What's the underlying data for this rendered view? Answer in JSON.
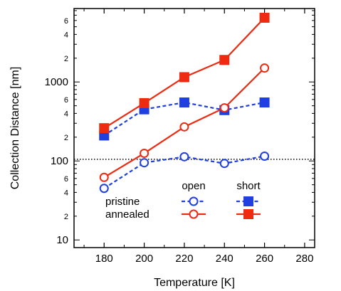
{
  "chart_data": {
    "type": "line",
    "xlabel": "Temperature  [K]",
    "ylabel": "Collection Distance  [nm]",
    "xlim": [
      165,
      285
    ],
    "ylim": [
      8,
      8500
    ],
    "y_scale": "log",
    "x_ticks": [
      180,
      200,
      220,
      240,
      260,
      280
    ],
    "x_tick_labels": [
      "180",
      "200",
      "220",
      "240",
      "260",
      "280"
    ],
    "y_major_ticks": [
      10,
      100,
      1000
    ],
    "y_major_labels": [
      "10",
      "100",
      "1000"
    ],
    "y_minor_ticks": [
      20,
      40,
      60,
      200,
      400,
      600,
      2000,
      4000,
      6000
    ],
    "y_minor_labels": [
      "2",
      "4",
      "6",
      "2",
      "4",
      "6",
      "2",
      "4",
      "6"
    ],
    "reference_line": {
      "y": 105,
      "style": "dotted",
      "color": "#000000"
    },
    "x": [
      180,
      200,
      220,
      240,
      260
    ],
    "series": [
      {
        "key": "pristine-open",
        "values": [
          45,
          95,
          113,
          93,
          115
        ],
        "color": "#1f3fe0",
        "marker": "circle-open",
        "line": "dashed"
      },
      {
        "key": "pristine-short",
        "values": [
          210,
          450,
          550,
          440,
          550
        ],
        "color": "#1f3fe0",
        "marker": "square",
        "line": "dashed"
      },
      {
        "key": "annealed-open",
        "values": [
          62,
          125,
          270,
          470,
          1500
        ],
        "color": "#ee2a10",
        "marker": "circle-open",
        "line": "solid"
      },
      {
        "key": "annealed-short",
        "values": [
          260,
          540,
          1150,
          1900,
          6500
        ],
        "color": "#ee2a10",
        "marker": "square",
        "line": "solid"
      }
    ],
    "legend": {
      "placement": "bottom-right",
      "col_headers": [
        "open",
        "short"
      ],
      "rows": [
        {
          "label": "pristine",
          "open": "pristine-open",
          "short": "pristine-short"
        },
        {
          "label": "annealed",
          "open": "annealed-open",
          "short": "annealed-short"
        }
      ]
    },
    "grid": false
  }
}
